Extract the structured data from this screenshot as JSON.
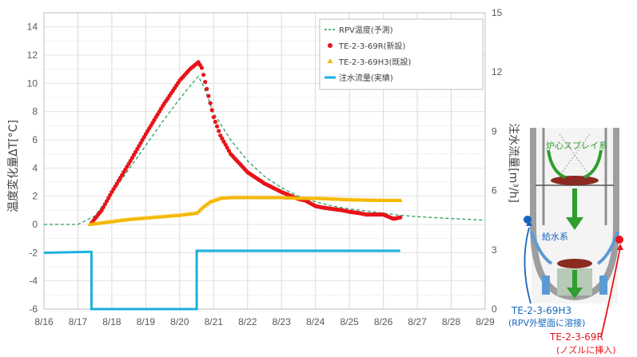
{
  "chart_data": {
    "type": "line",
    "title": "",
    "ylabel_left": "温度変化量ΔT[°C]",
    "ylabel_right": "注水流量[m³/h]",
    "xlabel": "",
    "x_range": [
      0,
      13
    ],
    "x_tick_labels": [
      "8/16",
      "8/17",
      "8/18",
      "8/19",
      "8/20",
      "8/21",
      "8/22",
      "8/23",
      "8/24",
      "8/25",
      "8/26",
      "8/27",
      "8/28",
      "8/29"
    ],
    "y_left_range": [
      -6,
      15
    ],
    "y_left_ticks": [
      -6,
      -4,
      -2,
      0,
      2,
      4,
      6,
      8,
      10,
      12,
      14
    ],
    "y_right_range": [
      0,
      15
    ],
    "y_right_ticks": [
      0,
      3,
      6,
      9,
      12,
      15
    ],
    "grid": true,
    "legend_position": "top-right",
    "series": [
      {
        "name": "RPV温度(予測)",
        "style": "dashed-line",
        "color": "#2e9e5b",
        "axis": "left",
        "x": [
          0,
          1.0,
          1.5,
          2.0,
          2.5,
          3.0,
          3.5,
          4.0,
          4.3,
          4.55,
          4.7,
          5.0,
          5.5,
          6.0,
          6.5,
          7.0,
          7.5,
          8.0,
          8.5,
          9.0,
          9.5,
          10.0,
          10.5,
          11.0,
          12.0,
          13.0
        ],
        "values": [
          0,
          0,
          0.6,
          2.2,
          3.9,
          5.6,
          7.3,
          8.9,
          9.8,
          10.5,
          9.8,
          7.9,
          6.0,
          4.5,
          3.4,
          2.6,
          2.0,
          1.6,
          1.3,
          1.1,
          0.95,
          0.8,
          0.65,
          0.55,
          0.42,
          0.3
        ]
      },
      {
        "name": "TE-2-3-69R(新設)",
        "style": "markers",
        "marker": "circle",
        "color": "#e8131a",
        "axis": "left",
        "x": [
          1.4,
          1.7,
          2.0,
          2.5,
          3.0,
          3.5,
          4.0,
          4.3,
          4.55,
          4.65,
          4.8,
          5.0,
          5.2,
          5.5,
          6.0,
          6.5,
          7.0,
          7.5,
          7.7,
          8.0,
          8.2,
          8.5,
          8.8,
          9.0,
          9.3,
          9.5,
          9.8,
          10.0,
          10.3,
          10.5
        ],
        "values": [
          0.1,
          1.0,
          2.3,
          4.3,
          6.4,
          8.4,
          10.2,
          11.0,
          11.5,
          11.1,
          9.6,
          7.6,
          6.3,
          5.0,
          3.7,
          2.9,
          2.3,
          1.8,
          1.7,
          1.3,
          1.2,
          1.1,
          1.0,
          0.9,
          0.8,
          0.7,
          0.7,
          0.7,
          0.4,
          0.5
        ]
      },
      {
        "name": "TE-2-3-69H3(既設)",
        "style": "markers",
        "marker": "triangle",
        "color": "#f5b800",
        "axis": "left",
        "x": [
          1.35,
          1.5,
          2.0,
          2.5,
          3.0,
          3.5,
          4.0,
          4.5,
          4.7,
          4.9,
          5.2,
          5.5,
          6.0,
          6.5,
          7.0,
          7.5,
          8.0,
          8.5,
          9.0,
          9.5,
          10.0,
          10.5
        ],
        "values": [
          0,
          0.05,
          0.2,
          0.35,
          0.45,
          0.55,
          0.65,
          0.8,
          1.25,
          1.6,
          1.85,
          1.9,
          1.9,
          1.9,
          1.9,
          1.85,
          1.85,
          1.8,
          1.75,
          1.72,
          1.7,
          1.7
        ]
      },
      {
        "name": "注水流量(実績)",
        "style": "solid-line",
        "color": "#1ab0e0",
        "axis": "right",
        "x": [
          0,
          1.4,
          1.4,
          4.5,
          4.5,
          6.0,
          8.0,
          10.5
        ],
        "values": [
          2.85,
          2.9,
          0,
          0,
          2.95,
          2.95,
          2.95,
          2.95
        ]
      }
    ]
  },
  "legend": [
    {
      "label": "RPV温度(予測)",
      "series": 0
    },
    {
      "label": "TE-2-3-69R(新設)",
      "series": 1
    },
    {
      "label": "TE-2-3-69H3(既設)",
      "series": 2
    },
    {
      "label": "注水流量(実績)",
      "series": 3
    }
  ],
  "diagram": {
    "spray_label": "炉心スプレイ系",
    "feedwater_label": "給水系",
    "sensor_h3_label_line1": "TE-2-3-69H3",
    "sensor_h3_label_line2": "(RPV外壁面に溶接)",
    "sensor_r_label_line1": "TE-2-3-69R",
    "sensor_r_label_line2": "(ノズルに挿入)",
    "colors": {
      "h3": "#1565c0",
      "r": "#e8131a",
      "spray": "#2e9e2e",
      "feed": "#1565c0",
      "vessel": "#9e9e9e"
    }
  }
}
